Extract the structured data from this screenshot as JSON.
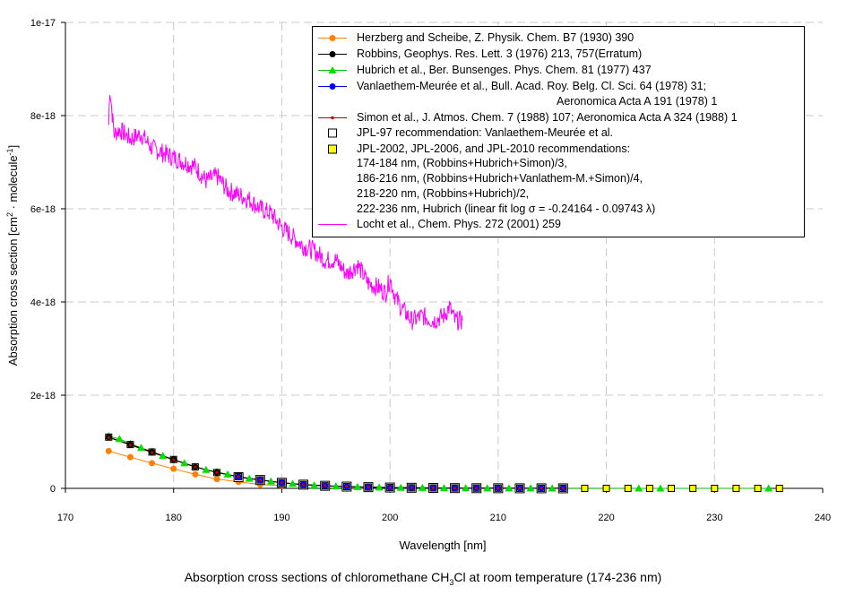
{
  "caption": {
    "main": "Absorption cross sections of chloromethane CH",
    "sub": "3",
    "rest": "Cl at room temperature (174-236 nm)"
  },
  "chart_data": {
    "type": "line",
    "title": "",
    "xlabel": "Wavelength [nm]",
    "ylabel_main": "Absorption cross section [cm",
    "ylabel_sup1": "2",
    "ylabel_mid": " · molecule",
    "ylabel_sup2": "-1",
    "ylabel_end": "]",
    "xlim": [
      170,
      240
    ],
    "ylim": [
      0,
      1e-17
    ],
    "x_ticks": [
      170,
      180,
      190,
      200,
      210,
      220,
      230,
      240
    ],
    "x_tick_labels": [
      "170",
      "180",
      "190",
      "200",
      "210",
      "220",
      "230",
      "240"
    ],
    "y_ticks": [
      0,
      2e-18,
      4e-18,
      6e-18,
      8e-18,
      1e-17
    ],
    "y_tick_labels": [
      "0",
      "2e-18",
      "4e-18",
      "6e-18",
      "8e-18",
      "1e-17"
    ],
    "grid": true,
    "legend_position": "top-right",
    "series": [
      {
        "name": "Herzberg and Scheibe, Z. Physik. Chem. B7 (1930) 390",
        "color": "#ff8000",
        "marker": "circle",
        "x": [
          174,
          176,
          178,
          180,
          182,
          184,
          186,
          188,
          190
        ],
        "y": [
          8e-19,
          6.7e-19,
          5.4e-19,
          4.2e-19,
          3e-19,
          2e-19,
          1.4e-19,
          8e-20,
          6e-20
        ]
      },
      {
        "name": "Robbins, Geophys. Res. Lett. 3 (1976) 213, 757(Erratum)",
        "color": "#000000",
        "marker": "circle",
        "x": [
          174,
          176,
          178,
          180,
          182,
          184,
          186,
          188,
          190,
          192,
          194,
          196,
          198,
          200,
          202,
          204,
          206,
          208,
          210,
          212,
          214,
          216
        ],
        "y": [
          1.1e-18,
          9.4e-19,
          7.8e-19,
          6.2e-19,
          4.6e-19,
          3.4e-19,
          2.5e-19,
          1.8e-19,
          1.2e-19,
          8e-20,
          5.5e-20,
          3.8e-20,
          2.6e-20,
          1.8e-20,
          1.3e-20,
          9e-21,
          6e-21,
          4e-21,
          3e-21,
          2e-21,
          1.5e-21,
          1e-21
        ]
      },
      {
        "name": "Hubrich et al., Ber. Bunsenges. Phys. Chem. 81 (1977) 437",
        "color": "#00c000",
        "marker": "triangle",
        "x": [
          174,
          175,
          176,
          177,
          178,
          179,
          180,
          181,
          182,
          183,
          184,
          185,
          186,
          187,
          188,
          189,
          190,
          191,
          192,
          193,
          194,
          195,
          196,
          197,
          198,
          199,
          200,
          201,
          202,
          203,
          204,
          205,
          206,
          207,
          208,
          209,
          210,
          211,
          212,
          213,
          214,
          215,
          216,
          223,
          225,
          235
        ],
        "y": [
          1.12e-18,
          1.06e-18,
          9.6e-19,
          8.7e-19,
          7.9e-19,
          7e-19,
          6.2e-19,
          5.4e-19,
          4.7e-19,
          4e-19,
          3.5e-19,
          3e-19,
          2.5e-19,
          2.1e-19,
          1.8e-19,
          1.5e-19,
          1.2e-19,
          1e-19,
          8e-20,
          6.6e-20,
          5.5e-20,
          4.6e-20,
          3.8e-20,
          3.2e-20,
          2.6e-20,
          2.2e-20,
          1.8e-20,
          1.5e-20,
          1.3e-20,
          1.1e-20,
          9e-21,
          7.5e-21,
          6e-21,
          5e-21,
          4e-21,
          3.5e-21,
          3e-21,
          2.5e-21,
          2e-21,
          1.8e-21,
          1.5e-21,
          1.2e-21,
          1e-21,
          5e-22,
          4e-22,
          1e-22
        ]
      },
      {
        "name": "Vanlaethem-Meurée et al., Bull. Acad. Roy. Belg. Cl. Sci. 64 (1978) 31;",
        "name_line2": "Aeronomica Acta A 191 (1978) 1",
        "color": "#0000ff",
        "marker": "circle",
        "x": [
          186,
          188,
          190,
          192,
          194,
          196,
          198,
          200,
          202,
          204,
          206,
          208,
          210,
          212,
          214,
          216
        ],
        "y": [
          2.4e-19,
          1.8e-19,
          1.2e-19,
          8e-20,
          5.5e-20,
          3.8e-20,
          2.6e-20,
          1.8e-20,
          1.3e-20,
          9e-21,
          6e-21,
          4e-21,
          3e-21,
          2e-21,
          1.5e-21,
          1e-21
        ]
      },
      {
        "name": "Simon et al., J. Atmos. Chem. 7 (1988) 107; Aeronomica Acta A 324 (1988) 1",
        "color": "#c00000",
        "marker": "dot",
        "x": [
          174,
          176,
          178,
          180,
          182,
          184,
          186,
          188,
          190,
          192,
          194,
          196,
          198,
          200,
          202,
          204,
          206,
          208,
          210,
          212,
          214,
          216
        ],
        "y": [
          1.09e-18,
          9.3e-19,
          7.7e-19,
          6.1e-19,
          4.6e-19,
          3.4e-19,
          2.5e-19,
          1.8e-19,
          1.2e-19,
          8e-20,
          5.5e-20,
          3.8e-20,
          2.6e-20,
          1.8e-20,
          1.3e-20,
          9e-21,
          6e-21,
          4e-21,
          3e-21,
          2e-21,
          1.5e-21,
          1e-21
        ]
      },
      {
        "name": "JPL-97 recommendation: Vanlaethem-Meurée et al.",
        "color": "#000000",
        "marker": "open-square",
        "x": [
          186,
          188,
          190,
          192,
          194,
          196,
          198,
          200,
          202,
          204,
          206,
          208,
          210,
          212,
          214,
          216
        ],
        "y": [
          2.4e-19,
          1.8e-19,
          1.2e-19,
          8e-20,
          5.5e-20,
          3.8e-20,
          2.6e-20,
          1.8e-20,
          1.3e-20,
          9e-21,
          6e-21,
          4e-21,
          3e-21,
          2e-21,
          1.5e-21,
          1e-21
        ]
      },
      {
        "name": "JPL-2002, JPL-2006, and JPL-2010 recommendations:",
        "name_lines": [
          "174-184 nm, (Robbins+Hubrich+Simon)/3,",
          "186-216 nm, (Robbins+Hubrich+Vanlathem-M.+Simon)/4,",
          "218-220 nm, (Robbins+Hubrich)/2,",
          "222-236 nm, Hubrich (linear fit log σ = -0.24164 - 0.09743 λ)"
        ],
        "color": "#ffff00",
        "marker": "filled-square",
        "x": [
          174,
          176,
          178,
          180,
          182,
          184,
          186,
          188,
          190,
          192,
          194,
          196,
          198,
          200,
          202,
          204,
          206,
          208,
          210,
          212,
          214,
          216,
          218,
          220,
          222,
          224,
          226,
          228,
          230,
          232,
          234,
          236
        ],
        "y": [
          1.1e-18,
          9.4e-19,
          7.8e-19,
          6.2e-19,
          4.6e-19,
          3.4e-19,
          2.5e-19,
          1.8e-19,
          1.2e-19,
          8e-20,
          5.5e-20,
          3.8e-20,
          2.6e-20,
          1.8e-20,
          1.3e-20,
          9e-21,
          6e-21,
          4e-21,
          3e-21,
          2e-21,
          1.5e-21,
          1e-21,
          8e-22,
          6e-22,
          5e-22,
          4e-22,
          3e-22,
          2e-22,
          1.5e-22,
          1e-22,
          8e-23,
          6e-23
        ]
      },
      {
        "name": "Locht et al., Chem. Phys. 272 (2001) 259",
        "color": "#ff00ff",
        "marker": "none",
        "x": [
          174.0,
          174.1,
          174.5,
          175,
          176,
          177,
          178,
          179,
          180,
          181,
          182,
          183,
          184,
          185,
          186,
          187,
          188,
          189,
          190,
          191,
          192,
          193,
          194,
          195,
          196,
          197,
          198,
          199,
          199.6,
          200,
          200.5,
          201,
          202,
          203,
          204,
          205,
          205.5,
          206,
          206.7
        ],
        "y": [
          7.8e-18,
          8.6e-18,
          7.6e-18,
          7.7e-18,
          7.5e-18,
          7.6e-18,
          7.3e-18,
          7.2e-18,
          7.1e-18,
          7e-18,
          6.9e-18,
          6.6e-18,
          6.7e-18,
          6.4e-18,
          6.3e-18,
          6.2e-18,
          6e-18,
          5.9e-18,
          5.6e-18,
          5.4e-18,
          5.2e-18,
          5.1e-18,
          4.9e-18,
          4.9e-18,
          4.6e-18,
          4.8e-18,
          4.4e-18,
          4.3e-18,
          4.2e-18,
          4.5e-18,
          4.1e-18,
          3.9e-18,
          3.6e-18,
          3.7e-18,
          3.6e-18,
          3.7e-18,
          3.9e-18,
          3.6e-18,
          3.6e-18
        ]
      }
    ]
  }
}
